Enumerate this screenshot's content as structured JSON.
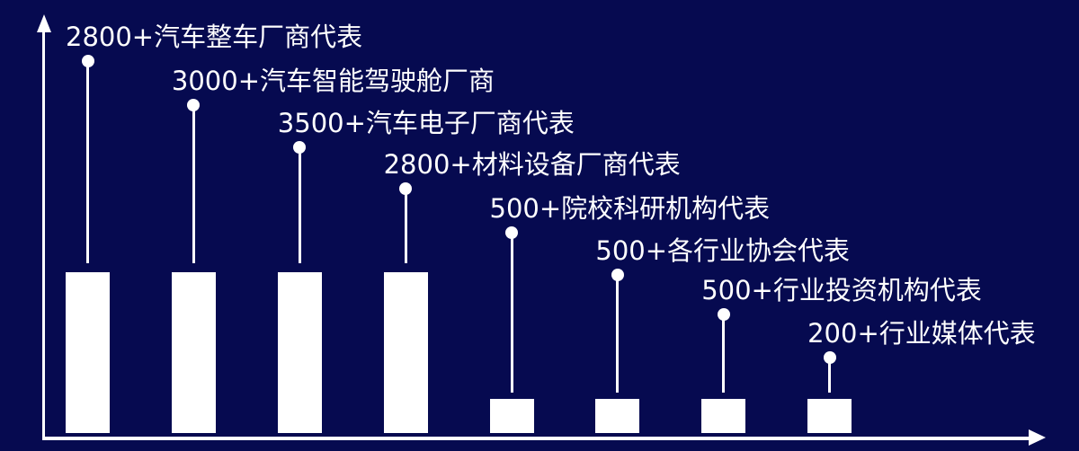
{
  "colors": {
    "background": "#060A50",
    "foreground": "#FFFFFF"
  },
  "chart_data": {
    "type": "bar",
    "variant": "lollipop-annotated pictorial bar chart, no tick labels",
    "title": "",
    "xlabel": "",
    "ylabel": "",
    "categories": [
      "汽车整车厂商代表",
      "汽车智能驾驶舱厂商",
      "汽车电子厂商代表",
      "材料设备厂商代表",
      "院校科研机构代表",
      "各行业协会代表",
      "行业投资机构代表",
      "行业媒体代表"
    ],
    "values": [
      2800,
      3000,
      3500,
      2800,
      500,
      500,
      500,
      200
    ],
    "value_suffix": "+",
    "annotations": [
      "2800+汽车整车厂商代表",
      "3000+汽车智能驾驶舱厂商",
      "3500+汽车电子厂商代表",
      "2800+材料设备厂商代表",
      "500+院校科研机构代表",
      "500+各行业协会代表",
      "500+行业投资机构代表",
      "200+行业媒体代表"
    ],
    "bar_size_groups": [
      "tall",
      "tall",
      "tall",
      "tall",
      "short",
      "short",
      "short",
      "short"
    ],
    "layout_hints": {
      "legend": "none",
      "gridlines": false,
      "x_axis_arrow": true,
      "y_axis_arrow": true,
      "labels": "staggered diagonally, each above a lollipop dot connected by a stem to its bar"
    }
  }
}
